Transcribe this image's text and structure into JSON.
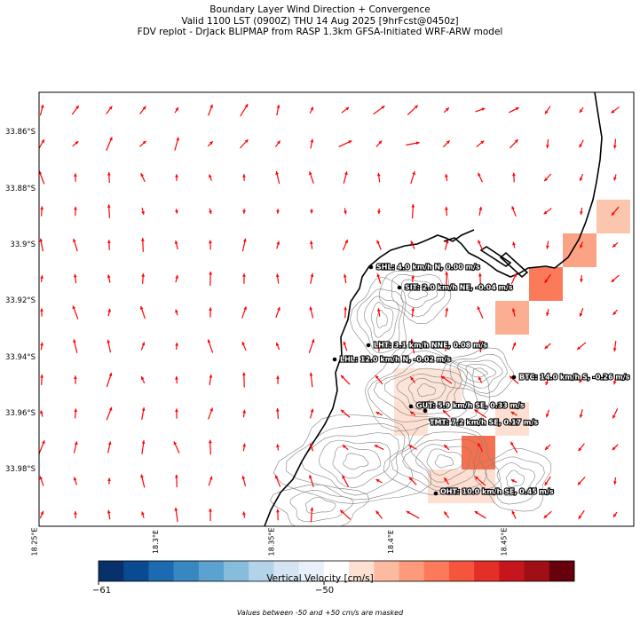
{
  "title": {
    "line1": "Boundary Layer Wind Direction + Convergence",
    "line2": "Valid 1100 LST (0900Z) THU 14 Aug 2025 [9hrFcst@0450z]",
    "line3": "FDV replot - DrJack BLIPMAP from RASP 1.3km GFSA-Initiated WRF-ARW model"
  },
  "y_labels": [
    "33.86°S",
    "33.88°S",
    "33.9°S",
    "33.92°S",
    "33.94°S",
    "33.96°S",
    "33.98°S"
  ],
  "x_labels": [
    "18.25°E",
    "18.3°E",
    "18.35°E",
    "18.4°E",
    "18.45°E"
  ],
  "stations": [
    {
      "label": "SHL: 4.0 km/h N, 0.00 m/s"
    },
    {
      "label": "SIT: 2.0 km/h NE, -0.04 m/s"
    },
    {
      "label": "LHT: 3.1 km/h NNE, 0.08 m/s"
    },
    {
      "label": "LHL: 12.0 km/h N, -0.02 m/s"
    },
    {
      "label": "BTC: 14.0 km/h S, -0.26 m/s"
    },
    {
      "label": "GUT: 5.9 km/h SE, 0.33 m/s"
    },
    {
      "label": "TMT: 7.2 km/h SE, 0.17 m/s"
    },
    {
      "label": "OHT: 10.0 km/h SE, 0.45 m/s"
    }
  ],
  "colorbar": {
    "label": "Vertical Velocity [cm/s]",
    "note": "Values between -50 and +50 cm/s are masked",
    "tick_min": "−61",
    "tick_mid": "−50",
    "colors": [
      "#08306b",
      "#0a4a90",
      "#1c6aaf",
      "#3787c0",
      "#5ba2d0",
      "#86bcdc",
      "#b3d3e9",
      "#d4e4f3",
      "#e8f1fa",
      "#ffffff",
      "#fde0d2",
      "#fcbba1",
      "#fc9a7b",
      "#fb7a5a",
      "#f5553c",
      "#e32f27",
      "#c4161c",
      "#a00f15",
      "#67000d"
    ]
  },
  "colors": {
    "arrow": "#ff0000",
    "coast": "#000000",
    "contour": "#808080"
  }
}
